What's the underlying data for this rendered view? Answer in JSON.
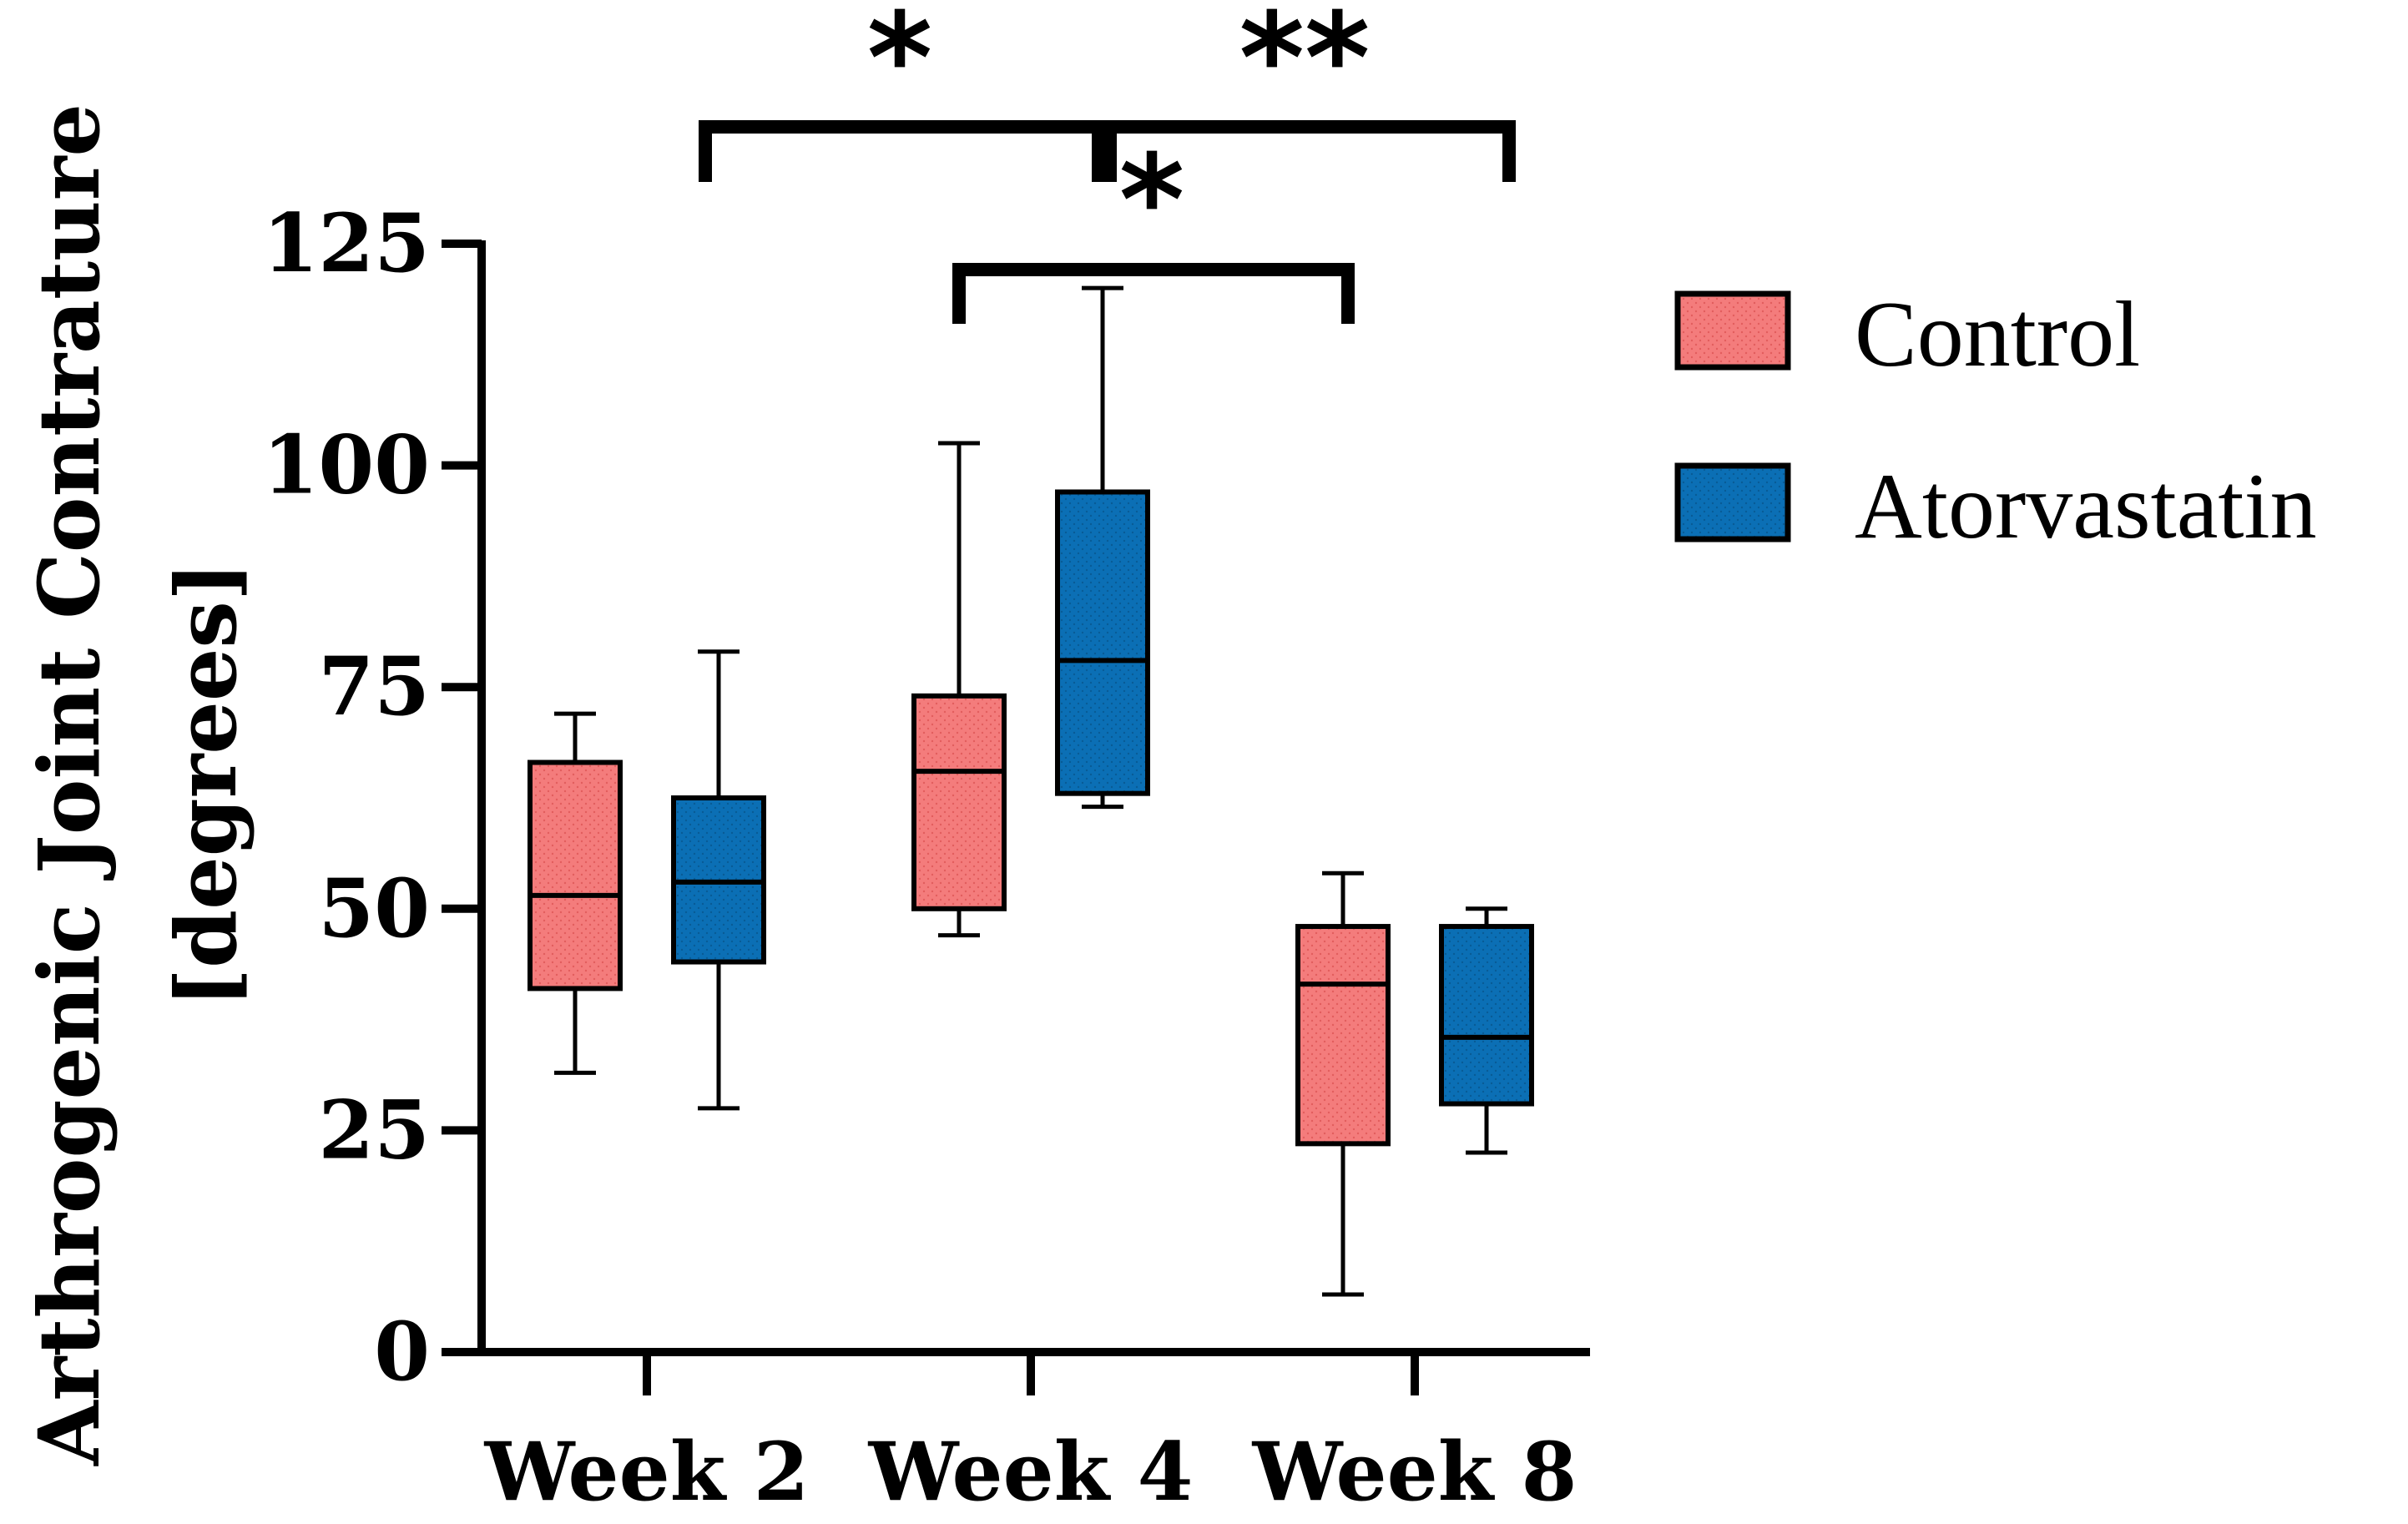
{
  "chart_data": {
    "type": "box",
    "title": "",
    "ylabel_line1": "Arthrogenic Joint  Contrature",
    "ylabel_line2": "[degrees]",
    "xlabel": "",
    "ylim": [
      0,
      125
    ],
    "yticks": [
      0,
      25,
      50,
      75,
      100,
      125
    ],
    "categories": [
      "Week 2",
      "Week 4",
      "Week 8"
    ],
    "legend_position": "right",
    "grid": false,
    "series": [
      {
        "name": "Control",
        "color": "#f47c7c",
        "boxes": [
          {
            "min": 31.5,
            "q1": 41,
            "median": 51.5,
            "q3": 66.5,
            "max": 72
          },
          {
            "min": 47,
            "q1": 50,
            "median": 65.5,
            "q3": 74,
            "max": 102.5
          },
          {
            "min": 6.5,
            "q1": 23.5,
            "median": 41.5,
            "q3": 48,
            "max": 54
          }
        ]
      },
      {
        "name": "Atorvastatin",
        "color": "#0b6fb5",
        "boxes": [
          {
            "min": 27.5,
            "q1": 44,
            "median": 53,
            "q3": 62.5,
            "max": 79
          },
          {
            "min": 61.5,
            "q1": 63,
            "median": 78,
            "q3": 97,
            "max": 120
          },
          {
            "min": 22.5,
            "q1": 28,
            "median": 35.5,
            "q3": 48,
            "max": 50
          }
        ]
      }
    ],
    "significance": [
      {
        "from_category": "Week 2",
        "to_category": "Week 4",
        "label": "*"
      },
      {
        "from_category": "Week 4",
        "to_category": "Week 8",
        "label": "**"
      },
      {
        "from_category": "Week 4",
        "to_category": "Week 8",
        "label": "*"
      }
    ]
  }
}
